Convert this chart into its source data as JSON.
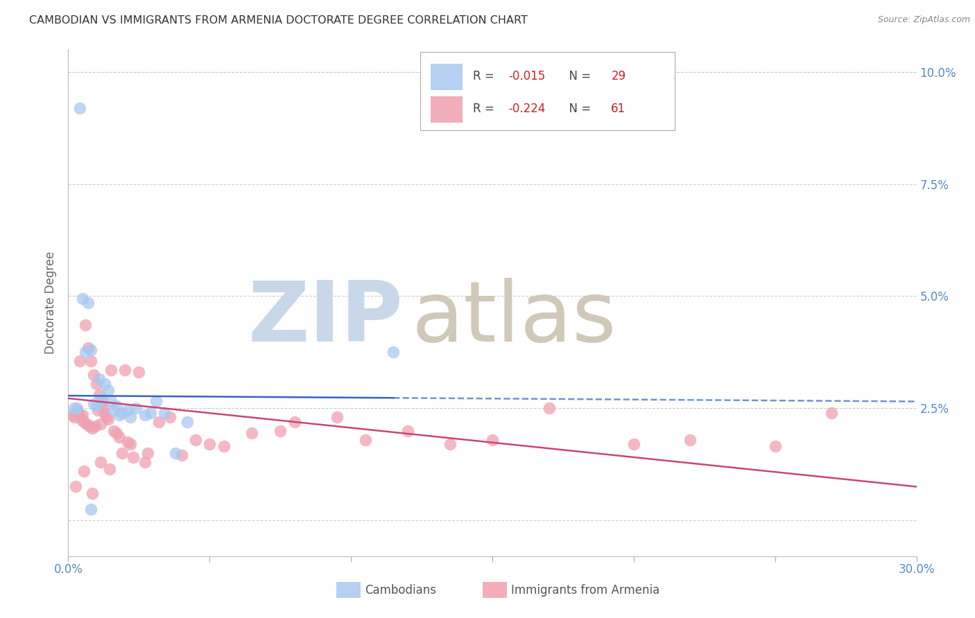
{
  "title": "CAMBODIAN VS IMMIGRANTS FROM ARMENIA DOCTORATE DEGREE CORRELATION CHART",
  "source": "Source: ZipAtlas.com",
  "ylabel": "Doctorate Degree",
  "x_min": 0.0,
  "x_max": 30.0,
  "y_min": -0.8,
  "y_max": 10.5,
  "yticks": [
    0.0,
    2.5,
    5.0,
    7.5,
    10.0
  ],
  "ytick_labels": [
    "",
    "2.5%",
    "5.0%",
    "7.5%",
    "10.0%"
  ],
  "xticks": [
    0.0,
    5.0,
    10.0,
    15.0,
    20.0,
    25.0,
    30.0
  ],
  "blue_R": -0.015,
  "blue_N": 29,
  "pink_R": -0.224,
  "pink_N": 61,
  "blue_color": "#A8C8F0",
  "pink_color": "#F0A0B0",
  "blue_line_color": "#3366BB",
  "pink_line_color": "#CC4477",
  "legend_label_blue": "Cambodians",
  "legend_label_pink": "Immigrants from Armenia",
  "blue_scatter_x": [
    0.4,
    0.5,
    0.7,
    0.8,
    0.9,
    1.0,
    1.1,
    1.2,
    1.3,
    1.5,
    1.6,
    1.7,
    1.9,
    2.1,
    2.4,
    2.7,
    3.1,
    3.4,
    3.8,
    4.2,
    0.3,
    0.6,
    1.4,
    1.8,
    2.2,
    2.9,
    11.5,
    0.2,
    0.8
  ],
  "blue_scatter_y": [
    9.2,
    4.95,
    4.85,
    3.8,
    2.6,
    2.55,
    3.15,
    2.7,
    3.05,
    2.65,
    2.45,
    2.55,
    2.4,
    2.45,
    2.5,
    2.35,
    2.65,
    2.4,
    1.5,
    2.2,
    2.5,
    3.75,
    2.9,
    2.35,
    2.3,
    2.4,
    3.75,
    2.5,
    0.25
  ],
  "pink_scatter_x": [
    0.15,
    0.2,
    0.3,
    0.35,
    0.4,
    0.45,
    0.5,
    0.55,
    0.6,
    0.65,
    0.7,
    0.75,
    0.8,
    0.85,
    0.9,
    0.95,
    1.0,
    1.05,
    1.1,
    1.15,
    1.2,
    1.25,
    1.3,
    1.35,
    1.4,
    1.5,
    1.6,
    1.7,
    1.8,
    1.9,
    2.0,
    2.1,
    2.2,
    2.5,
    2.8,
    3.2,
    3.6,
    4.0,
    4.5,
    5.0,
    5.5,
    6.5,
    7.5,
    8.0,
    9.5,
    10.5,
    12.0,
    13.5,
    15.0,
    17.0,
    20.0,
    22.0,
    25.0,
    27.0,
    0.25,
    0.55,
    0.85,
    1.15,
    1.45,
    2.3,
    2.7
  ],
  "pink_scatter_y": [
    2.35,
    2.3,
    2.45,
    2.4,
    3.55,
    2.25,
    2.35,
    2.2,
    4.35,
    2.15,
    3.85,
    2.1,
    3.55,
    2.05,
    3.25,
    2.1,
    3.05,
    2.45,
    2.8,
    2.15,
    2.65,
    2.5,
    2.4,
    2.3,
    2.25,
    3.35,
    2.0,
    1.95,
    1.85,
    1.5,
    3.35,
    1.75,
    1.7,
    3.3,
    1.5,
    2.2,
    2.3,
    1.45,
    1.8,
    1.7,
    1.65,
    1.95,
    2.0,
    2.2,
    2.3,
    1.8,
    2.0,
    1.7,
    1.8,
    2.5,
    1.7,
    1.8,
    1.65,
    2.4,
    0.75,
    1.1,
    0.6,
    1.3,
    1.15,
    1.4,
    1.3
  ],
  "blue_line_x0": 0.0,
  "blue_line_x1": 30.0,
  "blue_line_y0": 2.78,
  "blue_line_y1": 2.65,
  "blue_solid_end": 11.5,
  "pink_line_x0": 0.0,
  "pink_line_x1": 30.0,
  "pink_line_y0": 2.72,
  "pink_line_y1": 0.75,
  "watermark_zip": "ZIP",
  "watermark_atlas": "atlas",
  "watermark_color_zip": "#C8D8E8",
  "watermark_color_atlas": "#D0C8B8",
  "background_color": "#FFFFFF",
  "grid_color": "#CCCCCC"
}
